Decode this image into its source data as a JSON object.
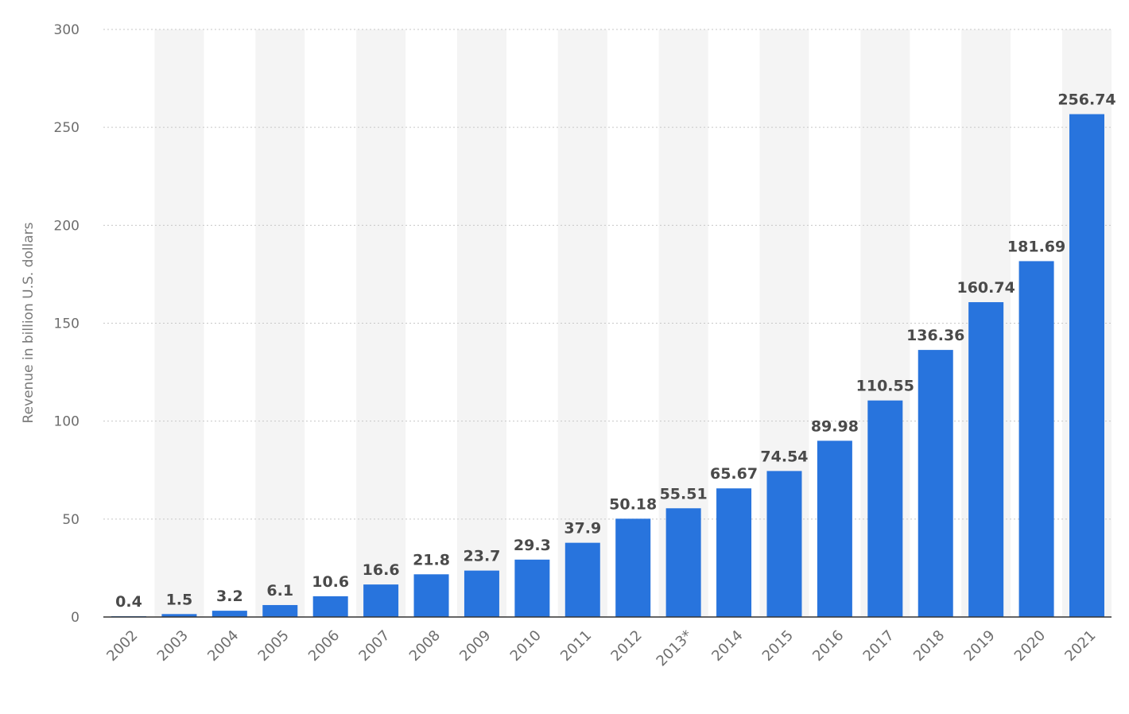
{
  "chart_data": {
    "type": "bar",
    "title": "",
    "xlabel": "",
    "ylabel": "Revenue in billion U.S. dollars",
    "ylim": [
      0,
      300
    ],
    "yticks": [
      0,
      50,
      100,
      150,
      200,
      250,
      300
    ],
    "grid": true,
    "colors": {
      "bar": "#2874dd",
      "band": "#f4f4f4"
    },
    "categories": [
      "2002",
      "2003",
      "2004",
      "2005",
      "2006",
      "2007",
      "2008",
      "2009",
      "2010",
      "2011",
      "2012",
      "2013*",
      "2014",
      "2015",
      "2016",
      "2017",
      "2018",
      "2019",
      "2020",
      "2021"
    ],
    "values": [
      0.4,
      1.5,
      3.2,
      6.1,
      10.6,
      16.6,
      21.8,
      23.7,
      29.3,
      37.9,
      50.18,
      55.51,
      65.67,
      74.54,
      89.98,
      110.55,
      136.36,
      160.74,
      181.69,
      256.74
    ],
    "data_labels": [
      "0.4",
      "1.5",
      "3.2",
      "6.1",
      "10.6",
      "16.6",
      "21.8",
      "23.7",
      "29.3",
      "37.9",
      "50.18",
      "55.51",
      "65.67",
      "74.54",
      "89.98",
      "110.55",
      "136.36",
      "160.74",
      "181.69",
      "256.74"
    ]
  }
}
